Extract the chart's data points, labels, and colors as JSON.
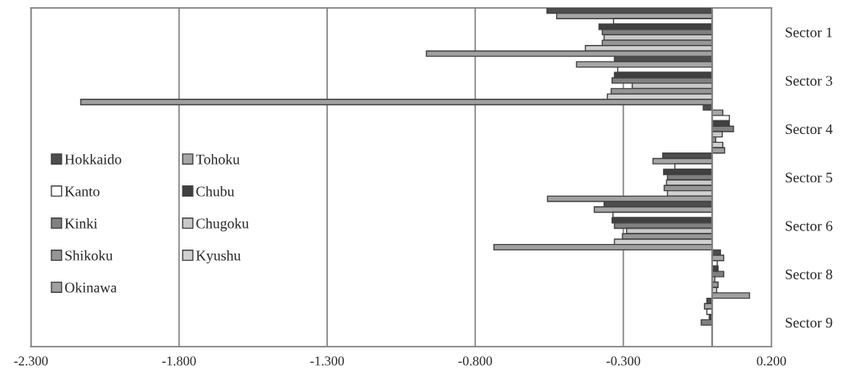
{
  "chart_data": {
    "type": "bar",
    "orientation": "horizontal",
    "categories": [
      "Sector 1",
      "Sector 3",
      "Sector 4",
      "Sector 5",
      "Sector 6",
      "Sector 8",
      "Sector 9"
    ],
    "series": [
      {
        "name": "Hokkaido",
        "color": "#4d4d4d",
        "values": [
          -0.558,
          -0.33,
          -0.03,
          -0.167,
          -0.365,
          0.028,
          -0.018
        ]
      },
      {
        "name": "Tohoku",
        "color": "#a6a6a6",
        "values": [
          -0.525,
          -0.458,
          0.036,
          -0.2,
          -0.398,
          0.039,
          -0.026
        ]
      },
      {
        "name": "Kanto",
        "color": "#ffffff",
        "values": [
          -0.333,
          -0.319,
          0.058,
          -0.126,
          -0.335,
          0.017,
          -0.018
        ]
      },
      {
        "name": "Chubu",
        "color": "#404040",
        "values": [
          -0.382,
          -0.33,
          0.058,
          -0.164,
          -0.338,
          0.02,
          -0.01
        ]
      },
      {
        "name": "Kinki",
        "color": "#808080",
        "values": [
          -0.371,
          -0.338,
          0.072,
          -0.151,
          -0.33,
          0.039,
          -0.037
        ]
      },
      {
        "name": "Chugoku",
        "color": "#c8c8c8",
        "values": [
          -0.365,
          -0.27,
          0.034,
          -0.154,
          -0.289,
          0.009,
          null
        ]
      },
      {
        "name": "Shikoku",
        "color": "#969696",
        "values": [
          -0.371,
          -0.341,
          0.012,
          -0.162,
          -0.303,
          0.02,
          null
        ]
      },
      {
        "name": "Kyushu",
        "color": "#d0d0d0",
        "values": [
          -0.428,
          -0.354,
          0.036,
          -0.151,
          -0.33,
          0.015,
          null
        ]
      },
      {
        "name": "Okinawa",
        "color": "#a0a0a0",
        "values": [
          -0.965,
          -2.132,
          0.042,
          -0.556,
          -0.737,
          0.126,
          null
        ]
      }
    ],
    "xlim": [
      -2.3,
      0.2
    ],
    "xticks": [
      {
        "value": -2.3,
        "label": "-2.300"
      },
      {
        "value": -1.8,
        "label": "-1.800"
      },
      {
        "value": -1.3,
        "label": "-1.300"
      },
      {
        "value": -0.8,
        "label": "-0.800"
      },
      {
        "value": -0.3,
        "label": "-0.300"
      },
      {
        "value": 0.2,
        "label": "0.200"
      }
    ],
    "grid": "x",
    "legend": "left"
  }
}
